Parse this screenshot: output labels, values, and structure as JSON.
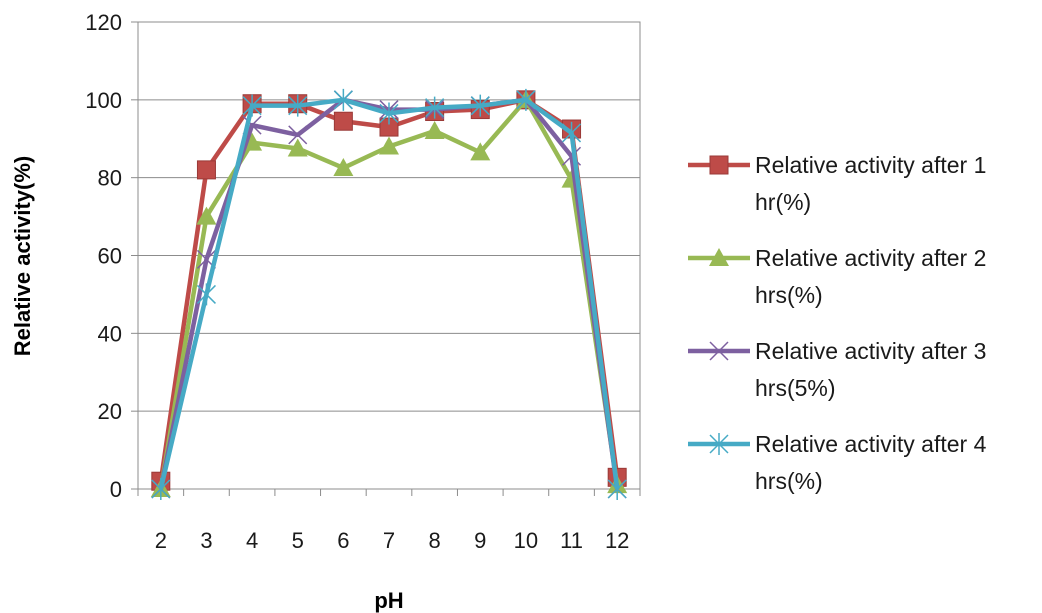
{
  "chart_data": {
    "type": "line",
    "title": "",
    "xlabel": "pH",
    "ylabel": "Relative activity(%)",
    "ylim": [
      0,
      120
    ],
    "yticks": [
      0,
      20,
      40,
      60,
      80,
      100,
      120
    ],
    "categories": [
      "2",
      "3",
      "4",
      "5",
      "6",
      "7",
      "8",
      "9",
      "10",
      "11",
      "12"
    ],
    "grid": "horizontal",
    "legend_position": "right",
    "series": [
      {
        "name_lines": [
          "Relative activity after 1",
          "hr(%)"
        ],
        "color": "#be4b48",
        "marker": "square",
        "values": [
          2,
          82,
          99,
          99,
          94.5,
          93,
          97,
          97.5,
          100,
          92.5,
          3
        ]
      },
      {
        "name_lines": [
          "Relative activity after 2",
          "hrs(%)"
        ],
        "color": "#98b954",
        "marker": "triangle",
        "values": [
          0,
          70,
          89,
          87.5,
          82.5,
          88,
          92,
          86.5,
          100,
          79.5,
          1
        ]
      },
      {
        "name_lines": [
          "Relative activity after 3",
          "hrs(5%)"
        ],
        "color": "#7d60a0",
        "marker": "x",
        "values": [
          0,
          59,
          93.5,
          91,
          100,
          97.5,
          97.5,
          98.5,
          100,
          85.5,
          0
        ]
      },
      {
        "name_lines": [
          "Relative activity after 4",
          "hrs(%)"
        ],
        "color": "#46aac5",
        "marker": "star",
        "values": [
          0,
          50,
          98.5,
          98.5,
          100,
          96.5,
          98,
          98.5,
          100,
          91.5,
          0
        ]
      }
    ]
  }
}
